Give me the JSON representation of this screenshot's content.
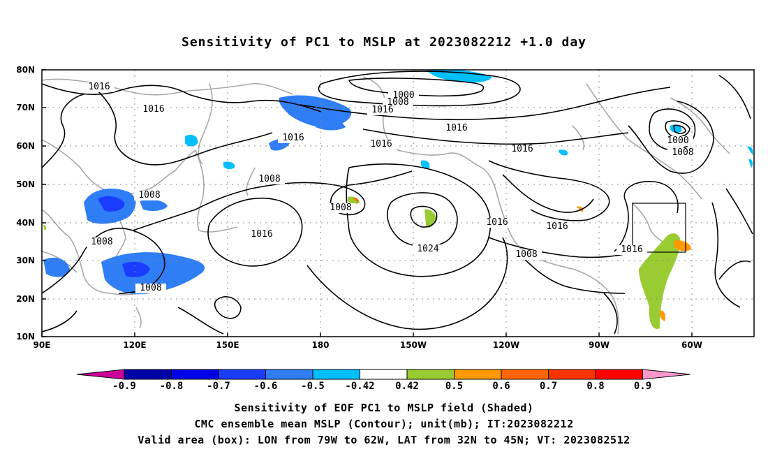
{
  "title": "Sensitivity of PC1 to MSLP at 2023082212 +1.0 day",
  "axes": {
    "lat_labels": [
      "80N",
      "70N",
      "60N",
      "50N",
      "40N",
      "30N",
      "20N",
      "10N"
    ],
    "lon_labels": [
      "90E",
      "120E",
      "150E",
      "180",
      "150W",
      "120W",
      "90W",
      "60W"
    ]
  },
  "contour_labels": [
    "1016",
    "1016",
    "1000",
    "1008",
    "1016",
    "1016",
    "1016",
    "1016",
    "1016",
    "1000",
    "1008",
    "1008",
    "1008",
    "1016",
    "1024",
    "1016",
    "1016",
    "1008",
    "1008",
    "1016",
    "1008",
    "1008"
  ],
  "colorbar": {
    "labels": [
      "-0.9",
      "-0.8",
      "-0.7",
      "-0.6",
      "-0.5",
      "-0.42",
      "0.42",
      "0.5",
      "0.6",
      "0.7",
      "0.8",
      "0.9"
    ],
    "colors": [
      "#cc0099",
      "#0000a8",
      "#0000e6",
      "#1a3cff",
      "#2f7ef5",
      "#00bfff",
      "#ffffff",
      "#99cc33",
      "#ff9900",
      "#ff6600",
      "#ff3300",
      "#ff0000",
      "#ff99cc"
    ]
  },
  "valid_box": {
    "lon": [
      -79,
      -62
    ],
    "lat": [
      32,
      45
    ]
  },
  "footer": {
    "line1": "Sensitivity of EOF PC1 to MSLP field (Shaded)",
    "line2": "CMC ensemble mean MSLP (Contour); unit(mb); IT:2023082212",
    "line3": "Valid area (box): LON from 79W to 62W, LAT from 32N to 45N; VT: 2023082512"
  }
}
